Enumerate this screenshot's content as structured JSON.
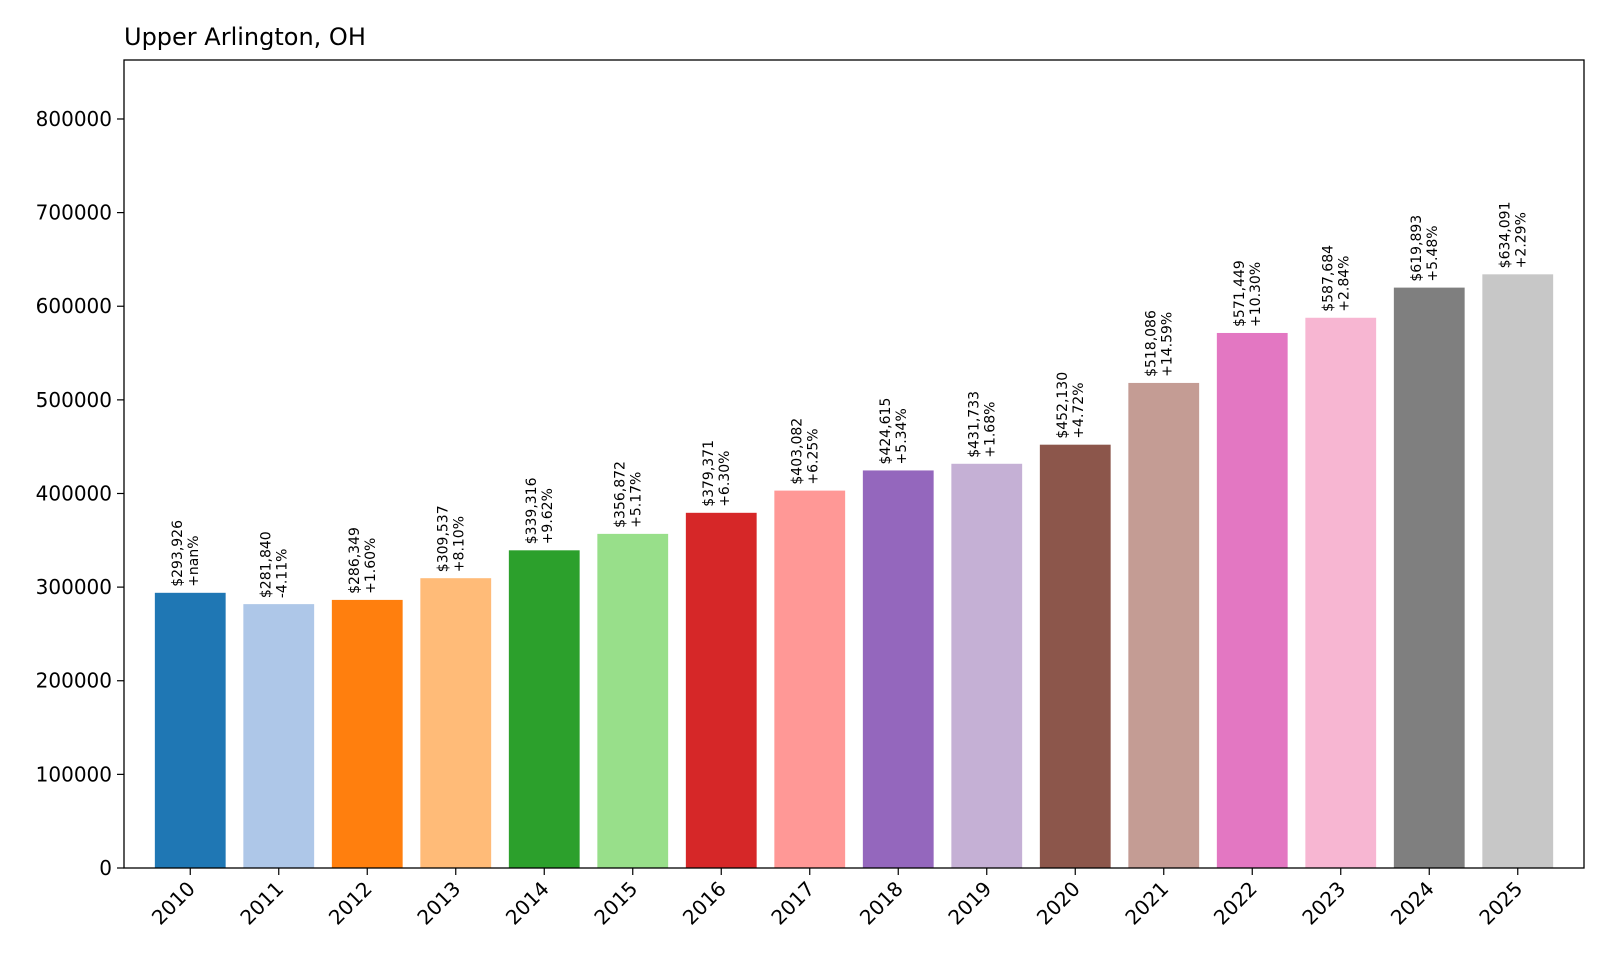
{
  "chart_data": {
    "type": "bar",
    "title": "Upper Arlington, OH",
    "xlabel": "",
    "ylabel": "",
    "ylim": [
      0,
      863000
    ],
    "yticks": [
      0,
      100000,
      200000,
      300000,
      400000,
      500000,
      600000,
      700000,
      800000
    ],
    "grid": false,
    "categories": [
      "2010",
      "2011",
      "2012",
      "2013",
      "2014",
      "2015",
      "2016",
      "2017",
      "2018",
      "2019",
      "2020",
      "2021",
      "2022",
      "2023",
      "2024",
      "2025"
    ],
    "values": [
      293926,
      281840,
      286349,
      309537,
      339316,
      356872,
      379371,
      403082,
      424615,
      431733,
      452130,
      518086,
      571449,
      587684,
      619893,
      634091
    ],
    "value_labels": [
      "$293,926",
      "$281,840",
      "$286,349",
      "$309,537",
      "$339,316",
      "$356,872",
      "$379,371",
      "$403,082",
      "$424,615",
      "$431,733",
      "$452,130",
      "$518,086",
      "$571,449",
      "$587,684",
      "$619,893",
      "$634,091"
    ],
    "change_labels": [
      "+nan%",
      "-4.11%",
      "+1.60%",
      "+8.10%",
      "+9.62%",
      "+5.17%",
      "+6.30%",
      "+6.25%",
      "+5.34%",
      "+1.68%",
      "+4.72%",
      "+14.59%",
      "+10.30%",
      "+2.84%",
      "+5.48%",
      "+2.29%"
    ],
    "colors": [
      "#1f77b4",
      "#aec7e8",
      "#ff7f0e",
      "#ffbb78",
      "#2ca02c",
      "#98df8a",
      "#d62728",
      "#ff9896",
      "#9467bd",
      "#c5b0d5",
      "#8c564b",
      "#c49c94",
      "#e377c2",
      "#f7b6d2",
      "#7f7f7f",
      "#c7c7c7"
    ]
  }
}
